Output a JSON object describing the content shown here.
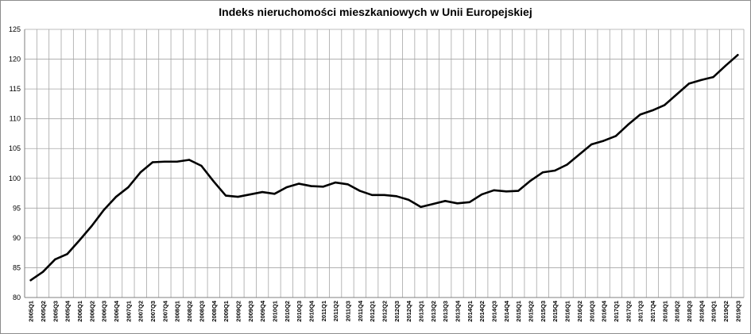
{
  "chart_data": {
    "type": "line",
    "title": "Indeks nieruchomości mieszkaniowych w Unii Europejskiej",
    "xlabel": "",
    "ylabel": "",
    "ylim": [
      80,
      125
    ],
    "yticks": [
      80,
      85,
      90,
      95,
      100,
      105,
      110,
      115,
      120,
      125
    ],
    "grid": true,
    "legend": "none",
    "line_color": "#000000",
    "categories": [
      "2005Q1",
      "2005Q2",
      "2005Q3",
      "2005Q4",
      "2006Q1",
      "2006Q2",
      "2006Q3",
      "2006Q4",
      "2007Q1",
      "2007Q2",
      "2007Q3",
      "2007Q4",
      "2008Q1",
      "2008Q2",
      "2008Q3",
      "2008Q4",
      "2009Q1",
      "2009Q2",
      "2009Q3",
      "2009Q4",
      "2010Q1",
      "2010Q2",
      "2010Q3",
      "2010Q4",
      "2011Q1",
      "2011Q2",
      "2011Q3",
      "2011Q4",
      "2012Q1",
      "2012Q2",
      "2012Q3",
      "2012Q4",
      "2013Q1",
      "2013Q2",
      "2013Q3",
      "2013Q4",
      "2014Q1",
      "2014Q2",
      "2014Q3",
      "2014Q4",
      "2015Q1",
      "2015Q2",
      "2015Q3",
      "2015Q4",
      "2016Q1",
      "2016Q2",
      "2016Q3",
      "2016Q4",
      "2017Q1",
      "2017Q2",
      "2017Q3",
      "2017Q4",
      "2018Q1",
      "2018Q2",
      "2018Q3",
      "2018Q4",
      "2019Q1",
      "2019Q2",
      "2019Q3"
    ],
    "values": [
      82.9,
      84.3,
      86.4,
      87.3,
      89.6,
      92.0,
      94.7,
      96.9,
      98.5,
      101.0,
      102.7,
      102.8,
      102.8,
      103.1,
      102.1,
      99.5,
      97.1,
      96.9,
      97.3,
      97.7,
      97.4,
      98.5,
      99.1,
      98.7,
      98.6,
      99.3,
      99.0,
      97.9,
      97.2,
      97.2,
      97.0,
      96.4,
      95.2,
      95.7,
      96.2,
      95.8,
      96.0,
      97.3,
      98.0,
      97.8,
      97.9,
      99.6,
      101.0,
      101.3,
      102.3,
      104.0,
      105.7,
      106.3,
      107.1,
      109.0,
      110.7,
      111.4,
      112.3,
      114.1,
      115.9,
      116.5,
      117.0,
      118.9,
      120.7
    ]
  }
}
